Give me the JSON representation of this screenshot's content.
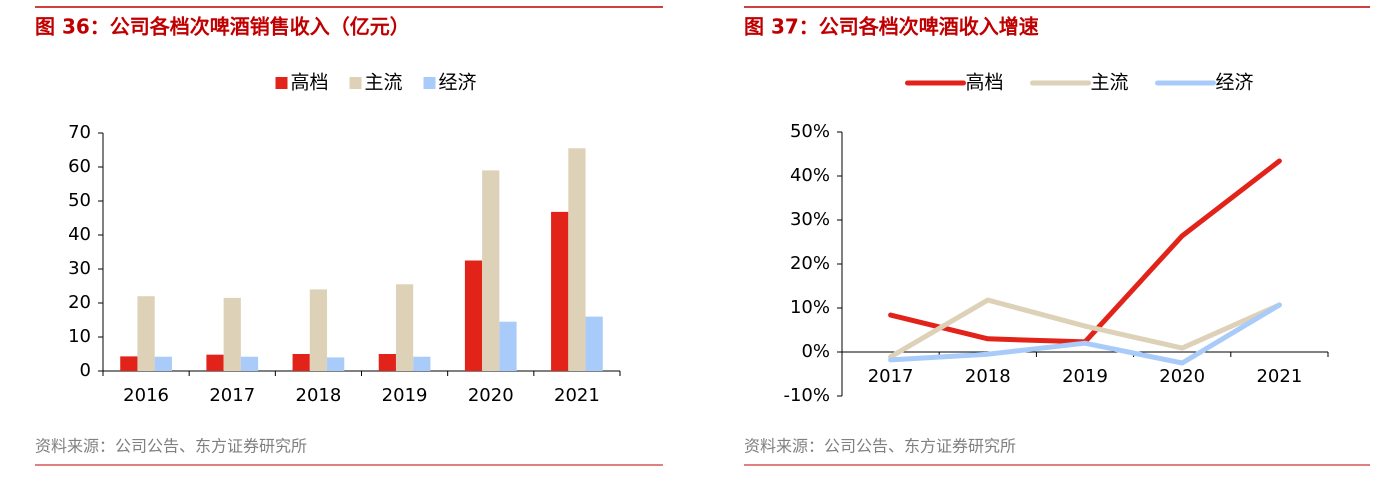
{
  "chart_data": [
    {
      "type": "bar",
      "title": "图 36：公司各档次啤酒销售收入（亿元）",
      "categories": [
        "2016",
        "2017",
        "2018",
        "2019",
        "2020",
        "2021"
      ],
      "series": [
        {
          "name": "高档",
          "color": "#e2231a",
          "values": [
            4.3,
            4.8,
            5.0,
            5.0,
            32.5,
            46.8
          ]
        },
        {
          "name": "主流",
          "color": "#ddd1b7",
          "values": [
            22,
            21.5,
            24,
            25.5,
            59,
            65.5
          ]
        },
        {
          "name": "经济",
          "color": "#a9cbfa",
          "values": [
            4.2,
            4.2,
            4.0,
            4.2,
            14.5,
            16
          ]
        }
      ],
      "ylim": [
        0,
        70
      ],
      "yticks": [
        0,
        10,
        20,
        30,
        40,
        50,
        60,
        70
      ],
      "legend": "top",
      "source": "资料来源：公司公告、东方证券研究所"
    },
    {
      "type": "line",
      "title": "图 37：公司各档次啤酒收入增速",
      "categories": [
        "2017",
        "2018",
        "2019",
        "2020",
        "2021"
      ],
      "series": [
        {
          "name": "高档",
          "color": "#e2231a",
          "values": [
            8.4,
            3.0,
            2.3,
            26.4,
            43.4
          ]
        },
        {
          "name": "主流",
          "color": "#ddd1b7",
          "values": [
            -1.1,
            11.8,
            5.9,
            0.9,
            10.7
          ]
        },
        {
          "name": "经济",
          "color": "#a9cbfa",
          "values": [
            -1.8,
            -0.5,
            2.0,
            -2.5,
            10.7
          ]
        }
      ],
      "ylim": [
        -10,
        50
      ],
      "yticks": [
        {
          "value": -10,
          "label": "-10%"
        },
        {
          "value": 0,
          "label": "0%"
        },
        {
          "value": 10,
          "label": "10%"
        },
        {
          "value": 20,
          "label": "20%"
        },
        {
          "value": 30,
          "label": "30%"
        },
        {
          "value": 40,
          "label": "40%"
        },
        {
          "value": 50,
          "label": "50%"
        }
      ],
      "legend": "top",
      "source": "资料来源：公司公告、东方证券研究所"
    }
  ]
}
